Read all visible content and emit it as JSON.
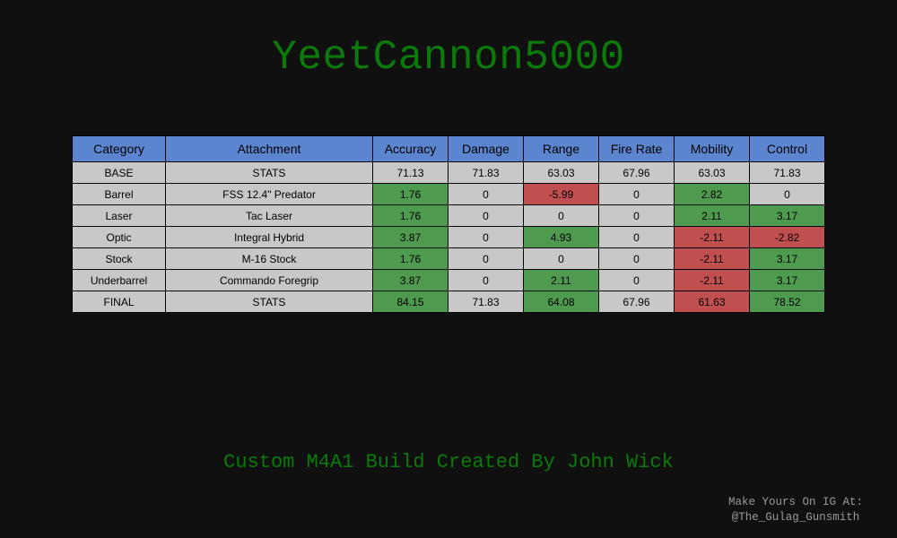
{
  "title": "YeetCannon5000",
  "table": {
    "headers": [
      "Category",
      "Attachment",
      "Accuracy",
      "Damage",
      "Range",
      "Fire Rate",
      "Mobility",
      "Control"
    ],
    "rows": [
      {
        "category": "BASE",
        "attachment": "STATS",
        "values": [
          "71.13",
          "71.83",
          "63.03",
          "67.96",
          "63.03",
          "71.83"
        ],
        "status": [
          "none",
          "none",
          "none",
          "none",
          "none",
          "none"
        ]
      },
      {
        "category": "Barrel",
        "attachment": "FSS 12.4\" Predator",
        "values": [
          "1.76",
          "0",
          "-5.99",
          "0",
          "2.82",
          "0"
        ],
        "status": [
          "positive",
          "none",
          "negative",
          "none",
          "positive",
          "none"
        ]
      },
      {
        "category": "Laser",
        "attachment": "Tac Laser",
        "values": [
          "1.76",
          "0",
          "0",
          "0",
          "2.11",
          "3.17"
        ],
        "status": [
          "positive",
          "none",
          "none",
          "none",
          "positive",
          "positive"
        ]
      },
      {
        "category": "Optic",
        "attachment": "Integral Hybrid",
        "values": [
          "3.87",
          "0",
          "4.93",
          "0",
          "-2.11",
          "-2.82"
        ],
        "status": [
          "positive",
          "none",
          "positive",
          "none",
          "negative",
          "negative"
        ]
      },
      {
        "category": "Stock",
        "attachment": "M-16 Stock",
        "values": [
          "1.76",
          "0",
          "0",
          "0",
          "-2.11",
          "3.17"
        ],
        "status": [
          "positive",
          "none",
          "none",
          "none",
          "negative",
          "positive"
        ]
      },
      {
        "category": "Underbarrel",
        "attachment": "Commando Foregrip",
        "values": [
          "3.87",
          "0",
          "2.11",
          "0",
          "-2.11",
          "3.17"
        ],
        "status": [
          "positive",
          "none",
          "positive",
          "none",
          "negative",
          "positive"
        ]
      },
      {
        "category": "FINAL",
        "attachment": "STATS",
        "values": [
          "84.15",
          "71.83",
          "64.08",
          "67.96",
          "61.63",
          "78.52"
        ],
        "status": [
          "positive",
          "none",
          "positive",
          "none",
          "negative",
          "positive"
        ]
      }
    ]
  },
  "subtitle": "Custom M4A1 Build Created By John Wick",
  "credit": {
    "line1": "Make Yours On IG At:",
    "line2": "@The_Gulag_Gunsmith"
  },
  "colors": {
    "background": "#101010",
    "title_green": "#0b7a0b",
    "header_blue": "#5b86cf",
    "cell_gray": "#c8c8c8",
    "positive_green": "#4e9a4e",
    "negative_red": "#c05050",
    "credit_gray": "#9a9a9a"
  }
}
